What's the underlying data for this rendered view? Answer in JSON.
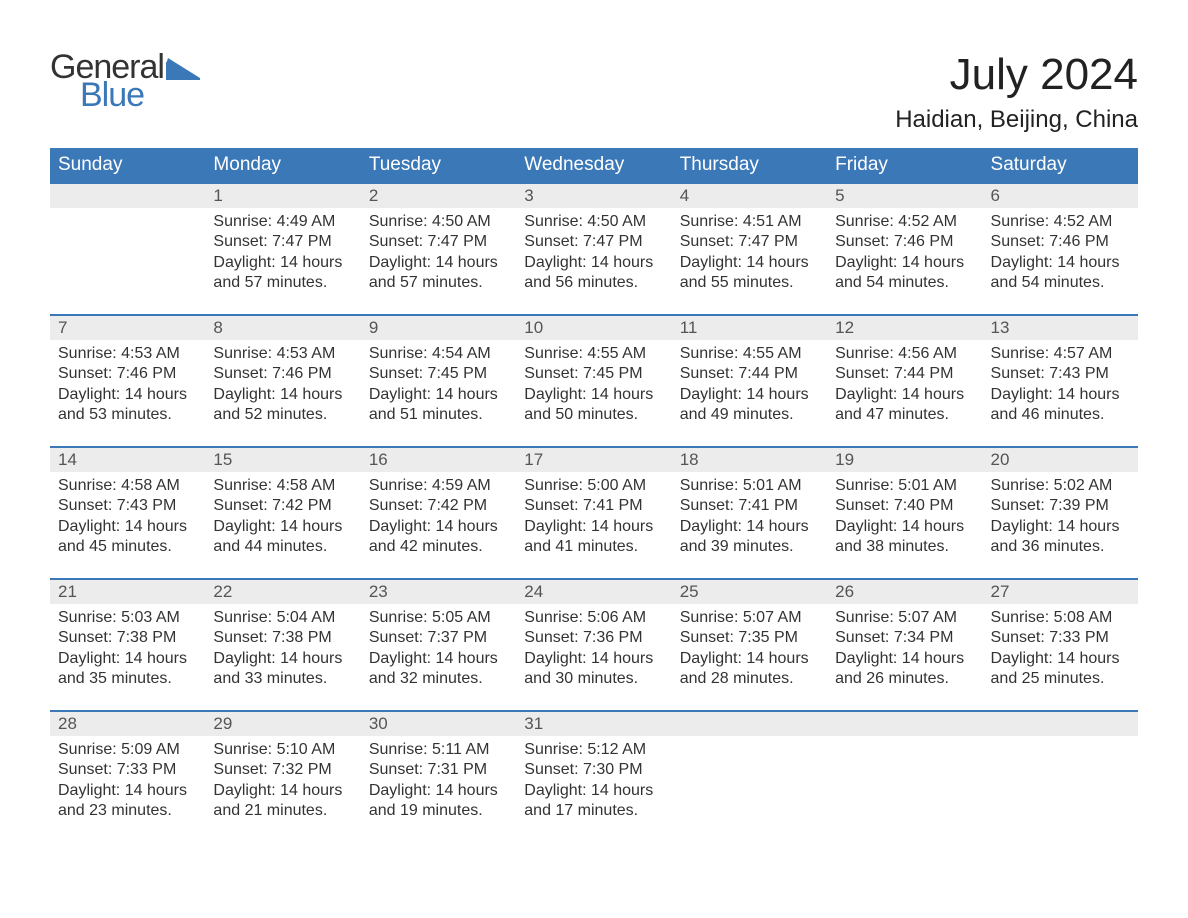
{
  "logo": {
    "text_top": "General",
    "text_bottom": "Blue",
    "flag_color": "#3b78b8",
    "text_color_dark": "#333333"
  },
  "title": "July 2024",
  "location": "Haidian, Beijing, China",
  "colors": {
    "header_bg": "#3b78b8",
    "header_text": "#ffffff",
    "band_bg": "#ececec",
    "row_border": "#3b78b8",
    "body_text": "#333333",
    "page_bg": "#ffffff"
  },
  "weekdays": [
    "Sunday",
    "Monday",
    "Tuesday",
    "Wednesday",
    "Thursday",
    "Friday",
    "Saturday"
  ],
  "weeks": [
    [
      null,
      {
        "n": "1",
        "sunrise": "Sunrise: 4:49 AM",
        "sunset": "Sunset: 7:47 PM",
        "d1": "Daylight: 14 hours",
        "d2": "and 57 minutes."
      },
      {
        "n": "2",
        "sunrise": "Sunrise: 4:50 AM",
        "sunset": "Sunset: 7:47 PM",
        "d1": "Daylight: 14 hours",
        "d2": "and 57 minutes."
      },
      {
        "n": "3",
        "sunrise": "Sunrise: 4:50 AM",
        "sunset": "Sunset: 7:47 PM",
        "d1": "Daylight: 14 hours",
        "d2": "and 56 minutes."
      },
      {
        "n": "4",
        "sunrise": "Sunrise: 4:51 AM",
        "sunset": "Sunset: 7:47 PM",
        "d1": "Daylight: 14 hours",
        "d2": "and 55 minutes."
      },
      {
        "n": "5",
        "sunrise": "Sunrise: 4:52 AM",
        "sunset": "Sunset: 7:46 PM",
        "d1": "Daylight: 14 hours",
        "d2": "and 54 minutes."
      },
      {
        "n": "6",
        "sunrise": "Sunrise: 4:52 AM",
        "sunset": "Sunset: 7:46 PM",
        "d1": "Daylight: 14 hours",
        "d2": "and 54 minutes."
      }
    ],
    [
      {
        "n": "7",
        "sunrise": "Sunrise: 4:53 AM",
        "sunset": "Sunset: 7:46 PM",
        "d1": "Daylight: 14 hours",
        "d2": "and 53 minutes."
      },
      {
        "n": "8",
        "sunrise": "Sunrise: 4:53 AM",
        "sunset": "Sunset: 7:46 PM",
        "d1": "Daylight: 14 hours",
        "d2": "and 52 minutes."
      },
      {
        "n": "9",
        "sunrise": "Sunrise: 4:54 AM",
        "sunset": "Sunset: 7:45 PM",
        "d1": "Daylight: 14 hours",
        "d2": "and 51 minutes."
      },
      {
        "n": "10",
        "sunrise": "Sunrise: 4:55 AM",
        "sunset": "Sunset: 7:45 PM",
        "d1": "Daylight: 14 hours",
        "d2": "and 50 minutes."
      },
      {
        "n": "11",
        "sunrise": "Sunrise: 4:55 AM",
        "sunset": "Sunset: 7:44 PM",
        "d1": "Daylight: 14 hours",
        "d2": "and 49 minutes."
      },
      {
        "n": "12",
        "sunrise": "Sunrise: 4:56 AM",
        "sunset": "Sunset: 7:44 PM",
        "d1": "Daylight: 14 hours",
        "d2": "and 47 minutes."
      },
      {
        "n": "13",
        "sunrise": "Sunrise: 4:57 AM",
        "sunset": "Sunset: 7:43 PM",
        "d1": "Daylight: 14 hours",
        "d2": "and 46 minutes."
      }
    ],
    [
      {
        "n": "14",
        "sunrise": "Sunrise: 4:58 AM",
        "sunset": "Sunset: 7:43 PM",
        "d1": "Daylight: 14 hours",
        "d2": "and 45 minutes."
      },
      {
        "n": "15",
        "sunrise": "Sunrise: 4:58 AM",
        "sunset": "Sunset: 7:42 PM",
        "d1": "Daylight: 14 hours",
        "d2": "and 44 minutes."
      },
      {
        "n": "16",
        "sunrise": "Sunrise: 4:59 AM",
        "sunset": "Sunset: 7:42 PM",
        "d1": "Daylight: 14 hours",
        "d2": "and 42 minutes."
      },
      {
        "n": "17",
        "sunrise": "Sunrise: 5:00 AM",
        "sunset": "Sunset: 7:41 PM",
        "d1": "Daylight: 14 hours",
        "d2": "and 41 minutes."
      },
      {
        "n": "18",
        "sunrise": "Sunrise: 5:01 AM",
        "sunset": "Sunset: 7:41 PM",
        "d1": "Daylight: 14 hours",
        "d2": "and 39 minutes."
      },
      {
        "n": "19",
        "sunrise": "Sunrise: 5:01 AM",
        "sunset": "Sunset: 7:40 PM",
        "d1": "Daylight: 14 hours",
        "d2": "and 38 minutes."
      },
      {
        "n": "20",
        "sunrise": "Sunrise: 5:02 AM",
        "sunset": "Sunset: 7:39 PM",
        "d1": "Daylight: 14 hours",
        "d2": "and 36 minutes."
      }
    ],
    [
      {
        "n": "21",
        "sunrise": "Sunrise: 5:03 AM",
        "sunset": "Sunset: 7:38 PM",
        "d1": "Daylight: 14 hours",
        "d2": "and 35 minutes."
      },
      {
        "n": "22",
        "sunrise": "Sunrise: 5:04 AM",
        "sunset": "Sunset: 7:38 PM",
        "d1": "Daylight: 14 hours",
        "d2": "and 33 minutes."
      },
      {
        "n": "23",
        "sunrise": "Sunrise: 5:05 AM",
        "sunset": "Sunset: 7:37 PM",
        "d1": "Daylight: 14 hours",
        "d2": "and 32 minutes."
      },
      {
        "n": "24",
        "sunrise": "Sunrise: 5:06 AM",
        "sunset": "Sunset: 7:36 PM",
        "d1": "Daylight: 14 hours",
        "d2": "and 30 minutes."
      },
      {
        "n": "25",
        "sunrise": "Sunrise: 5:07 AM",
        "sunset": "Sunset: 7:35 PM",
        "d1": "Daylight: 14 hours",
        "d2": "and 28 minutes."
      },
      {
        "n": "26",
        "sunrise": "Sunrise: 5:07 AM",
        "sunset": "Sunset: 7:34 PM",
        "d1": "Daylight: 14 hours",
        "d2": "and 26 minutes."
      },
      {
        "n": "27",
        "sunrise": "Sunrise: 5:08 AM",
        "sunset": "Sunset: 7:33 PM",
        "d1": "Daylight: 14 hours",
        "d2": "and 25 minutes."
      }
    ],
    [
      {
        "n": "28",
        "sunrise": "Sunrise: 5:09 AM",
        "sunset": "Sunset: 7:33 PM",
        "d1": "Daylight: 14 hours",
        "d2": "and 23 minutes."
      },
      {
        "n": "29",
        "sunrise": "Sunrise: 5:10 AM",
        "sunset": "Sunset: 7:32 PM",
        "d1": "Daylight: 14 hours",
        "d2": "and 21 minutes."
      },
      {
        "n": "30",
        "sunrise": "Sunrise: 5:11 AM",
        "sunset": "Sunset: 7:31 PM",
        "d1": "Daylight: 14 hours",
        "d2": "and 19 minutes."
      },
      {
        "n": "31",
        "sunrise": "Sunrise: 5:12 AM",
        "sunset": "Sunset: 7:30 PM",
        "d1": "Daylight: 14 hours",
        "d2": "and 17 minutes."
      },
      null,
      null,
      null
    ]
  ]
}
